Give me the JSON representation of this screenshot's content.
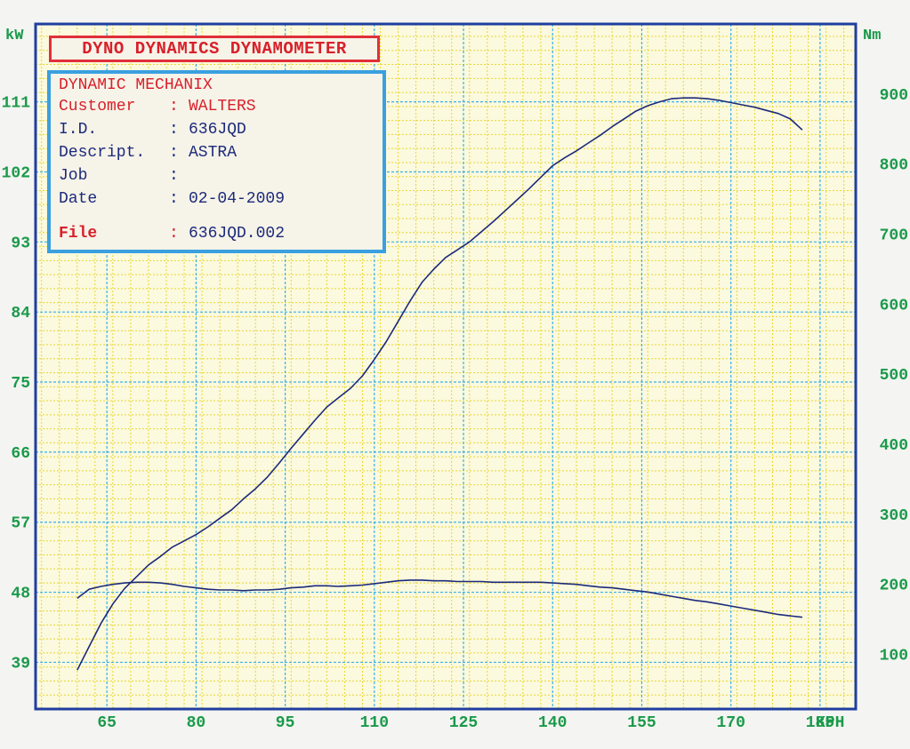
{
  "header": {
    "title": "DYNO DYNAMICS DYNAMOMETER"
  },
  "info": {
    "company": "DYNAMIC MECHANIX",
    "rows": [
      {
        "label": "Customer",
        "value": "WALTERS",
        "color": "#d8202a"
      },
      {
        "label": "I.D.",
        "value": "636JQD",
        "color": "#1c2a7a"
      },
      {
        "label": "Descript.",
        "value": "ASTRA",
        "color": "#1c2a7a"
      },
      {
        "label": "Job",
        "value": "",
        "color": "#1c2a7a"
      },
      {
        "label": "Date",
        "value": "02-04-2009",
        "color": "#1c2a7a"
      },
      {
        "label": "File",
        "value": "636JQD.002",
        "color": "#d8202a"
      }
    ]
  },
  "colors": {
    "frame": "#1f3fa0",
    "grid_major": "#3ab0e8",
    "grid_minor": "#e8d830",
    "background": "#fbf9de",
    "tick_labels": "#1a9a4a",
    "curve": "#1c2a7a",
    "header_border": "#e0303a",
    "info_border": "#3aa0e0"
  },
  "chart_data": {
    "type": "line",
    "title": "",
    "xlabel": "KPH",
    "ylabel_left": "kW",
    "ylabel_right": "Nm",
    "xlim": [
      53,
      191
    ],
    "ylim_left": [
      33,
      121
    ],
    "ylim_right": [
      22,
      1000
    ],
    "x_ticks": [
      65,
      80,
      95,
      110,
      125,
      140,
      155,
      170,
      185
    ],
    "y_ticks_left": [
      39,
      48,
      57,
      66,
      75,
      84,
      93,
      102,
      111
    ],
    "y_ticks_right": [
      100,
      200,
      300,
      400,
      500,
      600,
      700,
      800,
      900
    ],
    "grid": true,
    "series": [
      {
        "axis": "left",
        "x": [
          60,
          62,
          64,
          66,
          68,
          70,
          72,
          74,
          76,
          78,
          80,
          82,
          84,
          86,
          88,
          90,
          92,
          94,
          96,
          98,
          100,
          102,
          104,
          106,
          108,
          110,
          112,
          114,
          116,
          118,
          120,
          122,
          124,
          126,
          128,
          130,
          132,
          134,
          136,
          138,
          140,
          142,
          144,
          146,
          148,
          150,
          152,
          154,
          156,
          158,
          160,
          162,
          164,
          166,
          168,
          170,
          172,
          174,
          176,
          178,
          180,
          182
        ],
        "y": [
          38.0,
          41.0,
          44.0,
          46.5,
          48.5,
          50.0,
          51.5,
          52.6,
          53.8,
          54.6,
          55.4,
          56.4,
          57.5,
          58.6,
          60.0,
          61.3,
          62.8,
          64.6,
          66.5,
          68.3,
          70.1,
          71.8,
          73.0,
          74.2,
          75.8,
          77.9,
          80.2,
          82.8,
          85.4,
          87.8,
          89.5,
          91.0,
          92.0,
          93.0,
          94.3,
          95.6,
          97.0,
          98.4,
          99.8,
          101.3,
          102.8,
          103.8,
          104.7,
          105.7,
          106.7,
          107.8,
          108.8,
          109.8,
          110.5,
          111.0,
          111.4,
          111.5,
          111.5,
          111.4,
          111.2,
          110.9,
          110.6,
          110.3,
          109.9,
          109.5,
          108.8,
          107.4
        ]
      },
      {
        "axis": "right",
        "x": [
          60,
          62,
          64,
          66,
          68,
          70,
          72,
          74,
          76,
          78,
          80,
          82,
          84,
          86,
          88,
          90,
          92,
          94,
          96,
          98,
          100,
          102,
          104,
          106,
          108,
          110,
          112,
          114,
          116,
          118,
          120,
          122,
          124,
          126,
          128,
          130,
          132,
          134,
          136,
          138,
          140,
          142,
          144,
          146,
          148,
          150,
          152,
          154,
          156,
          158,
          160,
          162,
          164,
          166,
          168,
          170,
          172,
          174,
          176,
          178,
          180,
          182
        ],
        "y": [
          180,
          193,
          197,
          200,
          202,
          203,
          203,
          202,
          200,
          197,
          195,
          193,
          192,
          192,
          191,
          192,
          192,
          193,
          195,
          196,
          198,
          198,
          197,
          198,
          199,
          201,
          203,
          205,
          206,
          206,
          205,
          205,
          204,
          204,
          204,
          203,
          203,
          203,
          203,
          203,
          202,
          201,
          200,
          198,
          196,
          195,
          193,
          191,
          189,
          186,
          183,
          180,
          177,
          175,
          172,
          169,
          166,
          163,
          160,
          157,
          155,
          153
        ]
      }
    ]
  }
}
